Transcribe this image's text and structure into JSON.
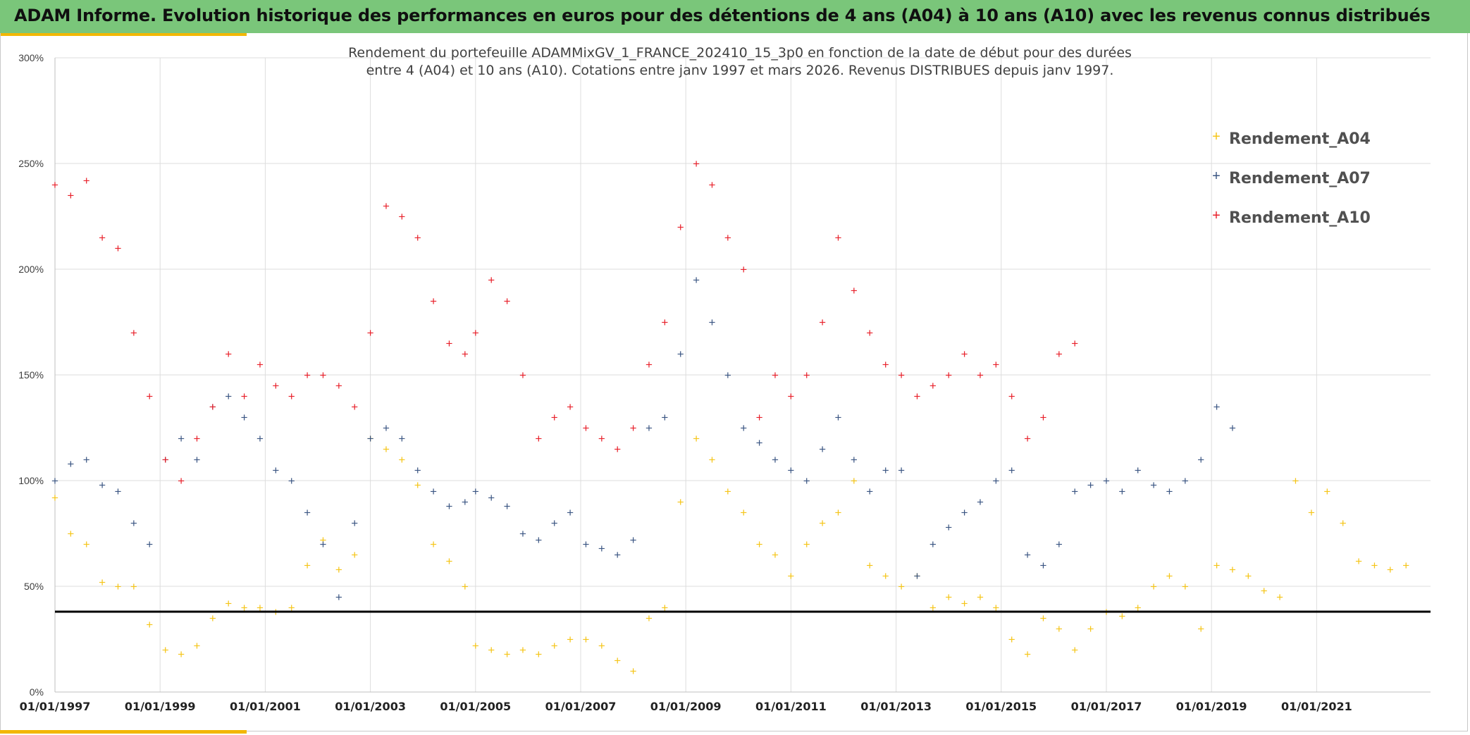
{
  "header": {
    "title": "ADAM Informe. Evolution historique des performances en euros pour des détentions de 4 ans (A04) à 10 ans (A10) avec les revenus connus distribués"
  },
  "colors": {
    "header_bg": "#7ac67a",
    "accent": "#f2b705",
    "a04": "#f5c518",
    "a07": "#3b5683",
    "a10": "#e8202a",
    "reference": "#000000",
    "grid": "#dddddd"
  },
  "chart_data": {
    "type": "scatter",
    "title_lines": [
      "Rendement du portefeuille ADAMMixGV_1_FRANCE_202410_15_3p0  en fonction de la date de début pour des durées",
      "entre 4 (A04) et 10 ans (A10). Cotations entre janv 1997 et mars 2026. Revenus DISTRIBUES depuis janv 1997."
    ],
    "x_range": [
      "1997-01-01",
      "2023-03-01"
    ],
    "y_range": [
      0,
      300
    ],
    "y_ticks": [
      0,
      50,
      100,
      150,
      200,
      250,
      300
    ],
    "y_tick_labels": [
      "0%",
      "50%",
      "100%",
      "150%",
      "200%",
      "250%",
      "300%"
    ],
    "x_ticks": [
      1997,
      1999,
      2001,
      2003,
      2005,
      2007,
      2009,
      2011,
      2013,
      2015,
      2017,
      2019,
      2021
    ],
    "x_tick_labels": [
      "01/01/1997",
      "01/01/1999",
      "01/01/2001",
      "01/01/2003",
      "01/01/2005",
      "01/01/2007",
      "01/01/2009",
      "01/01/2011",
      "01/01/2013",
      "01/01/2015",
      "01/01/2017",
      "01/01/2019",
      "01/01/2021"
    ],
    "grid": true,
    "legend_position": "top-right",
    "reference_line": {
      "y": 38,
      "label": ""
    },
    "series": [
      {
        "name": "Rendement_A04",
        "color": "#f5c518",
        "points": [
          [
            1997.0,
            92
          ],
          [
            1997.3,
            75
          ],
          [
            1997.6,
            70
          ],
          [
            1997.9,
            52
          ],
          [
            1998.2,
            50
          ],
          [
            1998.5,
            50
          ],
          [
            1998.8,
            32
          ],
          [
            1999.1,
            20
          ],
          [
            1999.4,
            18
          ],
          [
            1999.7,
            22
          ],
          [
            2000.0,
            35
          ],
          [
            2000.3,
            42
          ],
          [
            2000.6,
            40
          ],
          [
            2000.9,
            40
          ],
          [
            2001.2,
            38
          ],
          [
            2001.5,
            40
          ],
          [
            2001.8,
            60
          ],
          [
            2002.1,
            72
          ],
          [
            2002.4,
            58
          ],
          [
            2002.7,
            65
          ],
          [
            2003.0,
            120
          ],
          [
            2003.3,
            115
          ],
          [
            2003.6,
            110
          ],
          [
            2003.9,
            98
          ],
          [
            2004.2,
            70
          ],
          [
            2004.5,
            62
          ],
          [
            2004.8,
            50
          ],
          [
            2005.0,
            22
          ],
          [
            2005.3,
            20
          ],
          [
            2005.6,
            18
          ],
          [
            2005.9,
            20
          ],
          [
            2006.2,
            18
          ],
          [
            2006.5,
            22
          ],
          [
            2006.8,
            25
          ],
          [
            2007.1,
            25
          ],
          [
            2007.4,
            22
          ],
          [
            2007.7,
            15
          ],
          [
            2008.0,
            10
          ],
          [
            2008.3,
            35
          ],
          [
            2008.6,
            40
          ],
          [
            2008.9,
            90
          ],
          [
            2009.2,
            120
          ],
          [
            2009.5,
            110
          ],
          [
            2009.8,
            95
          ],
          [
            2010.1,
            85
          ],
          [
            2010.4,
            70
          ],
          [
            2010.7,
            65
          ],
          [
            2011.0,
            55
          ],
          [
            2011.3,
            70
          ],
          [
            2011.6,
            80
          ],
          [
            2011.9,
            85
          ],
          [
            2012.2,
            100
          ],
          [
            2012.5,
            60
          ],
          [
            2012.8,
            55
          ],
          [
            2013.1,
            50
          ],
          [
            2013.4,
            55
          ],
          [
            2013.7,
            40
          ],
          [
            2014.0,
            45
          ],
          [
            2014.3,
            42
          ],
          [
            2014.6,
            45
          ],
          [
            2014.9,
            40
          ],
          [
            2015.2,
            25
          ],
          [
            2015.5,
            18
          ],
          [
            2015.8,
            35
          ],
          [
            2016.1,
            30
          ],
          [
            2016.4,
            20
          ],
          [
            2016.7,
            30
          ],
          [
            2017.0,
            38
          ],
          [
            2017.3,
            36
          ],
          [
            2017.6,
            40
          ],
          [
            2017.9,
            50
          ],
          [
            2018.2,
            55
          ],
          [
            2018.5,
            50
          ],
          [
            2018.8,
            30
          ],
          [
            2019.1,
            60
          ],
          [
            2019.4,
            58
          ],
          [
            2019.7,
            55
          ],
          [
            2020.0,
            48
          ],
          [
            2020.3,
            45
          ],
          [
            2020.6,
            100
          ],
          [
            2020.9,
            85
          ],
          [
            2021.2,
            95
          ],
          [
            2021.5,
            80
          ],
          [
            2021.8,
            62
          ],
          [
            2022.1,
            60
          ],
          [
            2022.4,
            58
          ],
          [
            2022.7,
            60
          ]
        ]
      },
      {
        "name": "Rendement_A07",
        "color": "#3b5683",
        "points": [
          [
            1997.0,
            100
          ],
          [
            1997.3,
            108
          ],
          [
            1997.6,
            110
          ],
          [
            1997.9,
            98
          ],
          [
            1998.2,
            95
          ],
          [
            1998.5,
            80
          ],
          [
            1998.8,
            70
          ],
          [
            1999.1,
            110
          ],
          [
            1999.4,
            120
          ],
          [
            1999.7,
            110
          ],
          [
            2000.0,
            135
          ],
          [
            2000.3,
            140
          ],
          [
            2000.6,
            130
          ],
          [
            2000.9,
            120
          ],
          [
            2001.2,
            105
          ],
          [
            2001.5,
            100
          ],
          [
            2001.8,
            85
          ],
          [
            2002.1,
            70
          ],
          [
            2002.4,
            45
          ],
          [
            2002.7,
            80
          ],
          [
            2003.0,
            120
          ],
          [
            2003.3,
            125
          ],
          [
            2003.6,
            120
          ],
          [
            2003.9,
            105
          ],
          [
            2004.2,
            95
          ],
          [
            2004.5,
            88
          ],
          [
            2004.8,
            90
          ],
          [
            2005.0,
            95
          ],
          [
            2005.3,
            92
          ],
          [
            2005.6,
            88
          ],
          [
            2005.9,
            75
          ],
          [
            2006.2,
            72
          ],
          [
            2006.5,
            80
          ],
          [
            2006.8,
            85
          ],
          [
            2007.1,
            70
          ],
          [
            2007.4,
            68
          ],
          [
            2007.7,
            65
          ],
          [
            2008.0,
            72
          ],
          [
            2008.3,
            125
          ],
          [
            2008.6,
            130
          ],
          [
            2008.9,
            160
          ],
          [
            2009.2,
            195
          ],
          [
            2009.5,
            175
          ],
          [
            2009.8,
            150
          ],
          [
            2010.1,
            125
          ],
          [
            2010.4,
            118
          ],
          [
            2010.7,
            110
          ],
          [
            2011.0,
            105
          ],
          [
            2011.3,
            100
          ],
          [
            2011.6,
            115
          ],
          [
            2011.9,
            130
          ],
          [
            2012.2,
            110
          ],
          [
            2012.5,
            95
          ],
          [
            2012.8,
            105
          ],
          [
            2013.1,
            105
          ],
          [
            2013.4,
            55
          ],
          [
            2013.7,
            70
          ],
          [
            2014.0,
            78
          ],
          [
            2014.3,
            85
          ],
          [
            2014.6,
            90
          ],
          [
            2014.9,
            100
          ],
          [
            2015.2,
            105
          ],
          [
            2015.5,
            65
          ],
          [
            2015.8,
            60
          ],
          [
            2016.1,
            70
          ],
          [
            2016.4,
            95
          ],
          [
            2016.7,
            98
          ],
          [
            2017.0,
            100
          ],
          [
            2017.3,
            95
          ],
          [
            2017.6,
            105
          ],
          [
            2017.9,
            98
          ],
          [
            2018.2,
            95
          ],
          [
            2018.5,
            100
          ],
          [
            2018.8,
            110
          ],
          [
            2019.1,
            135
          ],
          [
            2019.4,
            125
          ]
        ]
      },
      {
        "name": "Rendement_A10",
        "color": "#e8202a",
        "points": [
          [
            1997.0,
            240
          ],
          [
            1997.3,
            235
          ],
          [
            1997.6,
            242
          ],
          [
            1997.9,
            215
          ],
          [
            1998.2,
            210
          ],
          [
            1998.5,
            170
          ],
          [
            1998.8,
            140
          ],
          [
            1999.1,
            110
          ],
          [
            1999.4,
            100
          ],
          [
            1999.7,
            120
          ],
          [
            2000.0,
            135
          ],
          [
            2000.3,
            160
          ],
          [
            2000.6,
            140
          ],
          [
            2000.9,
            155
          ],
          [
            2001.2,
            145
          ],
          [
            2001.5,
            140
          ],
          [
            2001.8,
            150
          ],
          [
            2002.1,
            150
          ],
          [
            2002.4,
            145
          ],
          [
            2002.7,
            135
          ],
          [
            2003.0,
            170
          ],
          [
            2003.3,
            230
          ],
          [
            2003.6,
            225
          ],
          [
            2003.9,
            215
          ],
          [
            2004.2,
            185
          ],
          [
            2004.5,
            165
          ],
          [
            2004.8,
            160
          ],
          [
            2005.0,
            170
          ],
          [
            2005.3,
            195
          ],
          [
            2005.6,
            185
          ],
          [
            2005.9,
            150
          ],
          [
            2006.2,
            120
          ],
          [
            2006.5,
            130
          ],
          [
            2006.8,
            135
          ],
          [
            2007.1,
            125
          ],
          [
            2007.4,
            120
          ],
          [
            2007.7,
            115
          ],
          [
            2008.0,
            125
          ],
          [
            2008.3,
            155
          ],
          [
            2008.6,
            175
          ],
          [
            2008.9,
            220
          ],
          [
            2009.2,
            250
          ],
          [
            2009.5,
            240
          ],
          [
            2009.8,
            215
          ],
          [
            2010.1,
            200
          ],
          [
            2010.4,
            130
          ],
          [
            2010.7,
            150
          ],
          [
            2011.0,
            140
          ],
          [
            2011.3,
            150
          ],
          [
            2011.6,
            175
          ],
          [
            2011.9,
            215
          ],
          [
            2012.2,
            190
          ],
          [
            2012.5,
            170
          ],
          [
            2012.8,
            155
          ],
          [
            2013.1,
            150
          ],
          [
            2013.4,
            140
          ],
          [
            2013.7,
            145
          ],
          [
            2014.0,
            150
          ],
          [
            2014.3,
            160
          ],
          [
            2014.6,
            150
          ],
          [
            2014.9,
            155
          ],
          [
            2015.2,
            140
          ],
          [
            2015.5,
            120
          ],
          [
            2015.8,
            130
          ],
          [
            2016.1,
            160
          ],
          [
            2016.4,
            165
          ]
        ]
      }
    ]
  }
}
